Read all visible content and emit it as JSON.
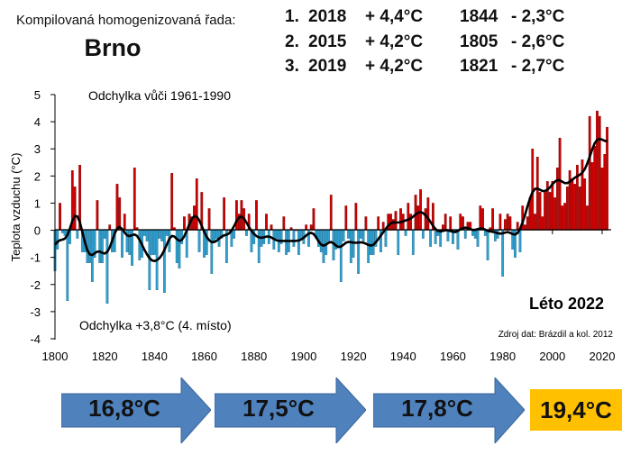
{
  "header": {
    "subtitle": "Kompilovaná homogenizovaná řada:",
    "city": "Brno",
    "records": [
      {
        "rank": "1.",
        "warm_year": "2018",
        "warm_value": "+ 4,4°C",
        "cold_year": "1844",
        "cold_value": "- 2,3°C"
      },
      {
        "rank": "2.",
        "warm_year": "2015",
        "warm_value": "+ 4,2°C",
        "cold_year": "1805",
        "cold_value": "- 2,6°C"
      },
      {
        "rank": "3.",
        "warm_year": "2019",
        "warm_value": "+ 4,2°C",
        "cold_year": "1821",
        "cold_value": "- 2,7°C"
      }
    ]
  },
  "chart_data": {
    "type": "bar",
    "title": "Odchylka vůči 1961-1990",
    "ylabel": "Teplota vzduchu (°C)",
    "xlabel": "",
    "ylim": [
      -4,
      5
    ],
    "xlim": [
      1800,
      2022
    ],
    "yticks": [
      "5",
      "4",
      "3",
      "2",
      "1",
      "0",
      "-1",
      "-2",
      "-3",
      "-4"
    ],
    "xticks": [
      "1800",
      "1820",
      "1840",
      "1860",
      "1880",
      "1900",
      "1920",
      "1940",
      "1960",
      "1980",
      "2000",
      "2020"
    ],
    "start_year": 1800,
    "values": [
      -1.5,
      -0.7,
      1.0,
      -0.1,
      -0.2,
      -2.6,
      -0.5,
      2.2,
      1.6,
      -0.3,
      2.4,
      -0.8,
      -0.8,
      -1.2,
      -1.2,
      -1.9,
      -1.0,
      1.1,
      -1.2,
      -1.2,
      -0.3,
      -2.7,
      0.2,
      -0.8,
      -0.8,
      1.7,
      1.2,
      -1.0,
      0.6,
      -0.8,
      -0.9,
      -1.3,
      2.3,
      0.1,
      -1.1,
      -1.0,
      -0.2,
      -0.4,
      -2.2,
      -0.9,
      -0.9,
      -2.2,
      -0.3,
      -0.4,
      -2.3,
      -0.2,
      -0.8,
      2.1,
      0.1,
      -1.2,
      -1.4,
      -0.5,
      0.5,
      -1.0,
      0.6,
      0.5,
      0.9,
      1.9,
      -0.8,
      1.4,
      -1.0,
      -0.9,
      0.8,
      -1.6,
      -0.4,
      -0.3,
      -0.6,
      -0.3,
      1.2,
      -1.2,
      0.0,
      -0.6,
      -0.3,
      1.1,
      0.6,
      1.1,
      0.8,
      -0.2,
      0.6,
      -0.8,
      -0.5,
      1.1,
      -1.2,
      -0.6,
      -0.5,
      0.6,
      -0.5,
      0.2,
      -0.7,
      -0.3,
      -0.8,
      -0.5,
      0.5,
      -0.9,
      -0.8,
      0.1,
      -0.6,
      0.0,
      -0.9,
      -0.3,
      -0.5,
      0.2,
      -0.6,
      0.2,
      0.8,
      -0.3,
      -0.6,
      -0.8,
      -1.2,
      -0.9,
      -0.4,
      1.3,
      -1.1,
      -0.7,
      -0.6,
      -1.9,
      -0.4,
      0.9,
      -0.3,
      -1.2,
      -1.0,
      1.0,
      -1.6,
      -0.3,
      -0.4,
      0.5,
      -1.2,
      -0.9,
      -0.9,
      -0.6,
      0.5,
      -0.8,
      0.3,
      -0.6,
      0.6,
      0.6,
      0.4,
      0.7,
      -0.9,
      0.8,
      0.6,
      -0.2,
      1.0,
      0.6,
      -0.9,
      1.3,
      0.9,
      1.5,
      -0.3,
      0.8,
      1.2,
      -0.6,
      1.0,
      -0.5,
      -0.2,
      -0.6,
      0.2,
      0.6,
      -0.4,
      0.5,
      -0.5,
      -0.1,
      -0.7,
      0.6,
      0.5,
      -0.3,
      0.3,
      0.3,
      -0.2,
      -0.3,
      -0.6,
      0.9,
      0.8,
      -0.2,
      -1.1,
      0.1,
      0.8,
      -0.4,
      -0.3,
      0.6,
      -1.7,
      0.4,
      0.6,
      0.5,
      -0.7,
      -1.0,
      0.3,
      -0.8,
      0.9,
      0.2,
      0.5,
      1.2,
      3.0,
      0.6,
      2.7,
      1.4,
      0.5,
      1.4,
      1.8,
      1.4,
      1.8,
      1.2,
      2.3,
      3.4,
      0.9,
      1.0,
      1.6,
      2.2,
      1.9,
      1.7,
      2.4,
      1.6,
      2.6,
      1.9,
      0.9,
      4.2,
      2.5,
      3.1,
      4.4,
      4.2,
      2.3,
      2.8,
      3.8
    ],
    "smoothing": "gaussian low-pass filter",
    "annotations": {
      "deviation_2022": "Odchylka +3,8°C (4. místo)",
      "season": "Léto 2022",
      "source": "Zdroj dat: Brázdil a kol. 2012"
    },
    "colors": {
      "positive": "#cc0000",
      "positive_edge": "#7a0000",
      "negative": "#2fa0cf",
      "negative_edge": "#1b6a8f",
      "smooth": "#000000"
    }
  },
  "periods": [
    {
      "value": "16,8°C",
      "color": "#4f81bd"
    },
    {
      "value": "17,5°C",
      "color": "#4f81bd"
    },
    {
      "value": "17,8°C",
      "color": "#4f81bd"
    },
    {
      "value": "19,4°C",
      "color": "#ffc000"
    }
  ]
}
